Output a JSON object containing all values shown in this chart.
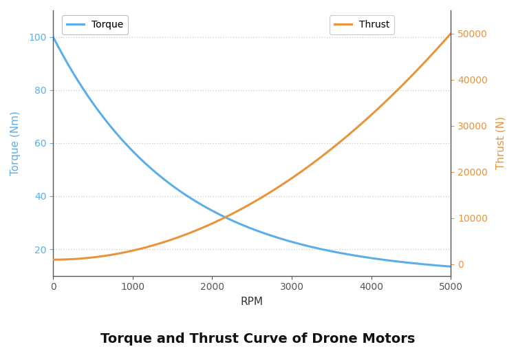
{
  "title": "Torque and Thrust Curve of Drone Motors",
  "xlabel": "RPM",
  "ylabel_left": "Torque (Nm)",
  "ylabel_right": "Thrust (N)",
  "torque_color": "#5BAEE8",
  "thrust_color": "#E8943A",
  "rpm_points": 500,
  "torque_start": 100,
  "torque_end": 10,
  "torque_decay": 0.00065,
  "ylim_left": [
    10,
    110
  ],
  "ylim_right": [
    -2500,
    55000
  ],
  "xlim": [
    0,
    5000
  ],
  "yticks_left": [
    20,
    40,
    60,
    80,
    100
  ],
  "yticks_right": [
    0,
    10000,
    20000,
    30000,
    40000,
    50000
  ],
  "xticks": [
    0,
    1000,
    2000,
    3000,
    4000,
    5000
  ],
  "grid_color": "#cccccc",
  "legend_torque": "Torque",
  "legend_thrust": "Thrust",
  "bg_color": "#ffffff",
  "line_width": 2.2,
  "spine_color": "#555555",
  "tick_color": "#555555",
  "xlabel_color": "#333333",
  "title_color": "#111111",
  "title_fontsize": 14,
  "axis_label_fontsize": 11,
  "tick_fontsize": 10
}
